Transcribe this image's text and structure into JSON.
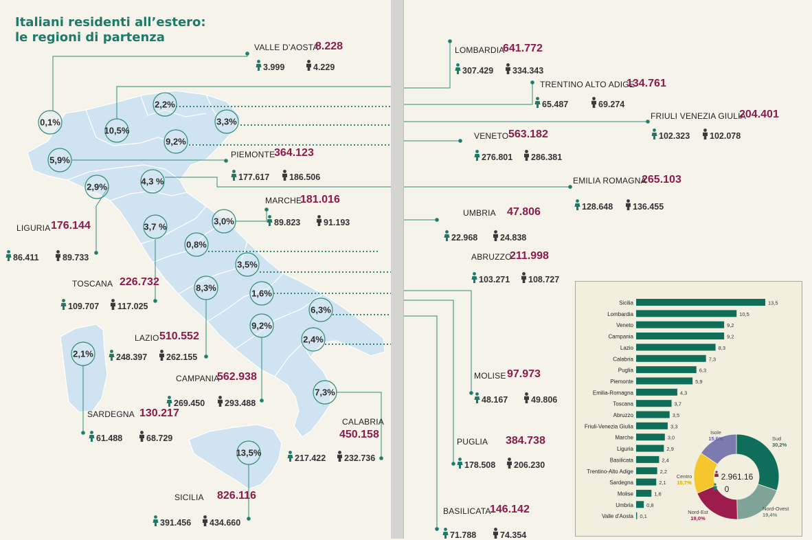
{
  "title_lines": [
    "Italiani residenti all’estero:",
    "le regioni di partenza"
  ],
  "colors": {
    "accent": "#1d7a68",
    "total": "#8c1a4a",
    "map": "#cfe3f0",
    "bar": "#0f6e5a",
    "sud": "#0f6e5a",
    "nord_ovest": "#7fa396",
    "nord_est": "#9c1c4c",
    "centro": "#f6c72d",
    "isole": "#7c7bb0"
  },
  "icons": {
    "female": "female-icon",
    "male": "male-icon"
  },
  "regions": [
    {
      "name": "VALLE D’AOSTA",
      "total": "8.228",
      "female": "3.999",
      "male": "4.229",
      "pct": "0,1%"
    },
    {
      "name": "LOMBARDIA",
      "total": "641.772",
      "female": "307.429",
      "male": "334.343",
      "pct": "10,5%"
    },
    {
      "name": "TRENTINO ALTO ADIGE",
      "total": "134.761",
      "female": "65.487",
      "male": "69.274",
      "pct": "2,2%"
    },
    {
      "name": "FRIULI VENEZIA GIULIA",
      "total": "204.401",
      "female": "102.323",
      "male": "102.078",
      "pct": "3,3%"
    },
    {
      "name": "VENETO",
      "total": "563.182",
      "female": "276.801",
      "male": "286.381",
      "pct": "9,2%"
    },
    {
      "name": "PIEMONTE",
      "total": "364.123",
      "female": "177.617",
      "male": "186.506",
      "pct": "5,9%"
    },
    {
      "name": "EMILIA ROMAGNA",
      "total": "265.103",
      "female": "128.648",
      "male": "136.455",
      "pct": "4,3 %"
    },
    {
      "name": "LIGURIA",
      "total": "176.144",
      "female": "86.411",
      "male": "89.733",
      "pct": "2,9%"
    },
    {
      "name": "MARCHE",
      "total": "181.016",
      "female": "89.823",
      "male": "91.193",
      "pct": "3,0%"
    },
    {
      "name": "UMBRIA",
      "total": "47.806",
      "female": "22.968",
      "male": "24.838",
      "pct": "0,8%"
    },
    {
      "name": "TOSCANA",
      "total": "226.732",
      "female": "109.707",
      "male": "117.025",
      "pct": "3,7 %"
    },
    {
      "name": "ABRUZZO",
      "total": "211.998",
      "female": "103.271",
      "male": "108.727",
      "pct": "3,5%"
    },
    {
      "name": "LAZIO",
      "total": "510.552",
      "female": "248.397",
      "male": "262.155",
      "pct": "8,3%"
    },
    {
      "name": "MOLISE",
      "total": "97.973",
      "female": "48.167",
      "male": "49.806",
      "pct": "1,6%"
    },
    {
      "name": "SARDEGNA",
      "total": "130.217",
      "female": "61.488",
      "male": "68.729",
      "pct": "2,1%"
    },
    {
      "name": "CAMPANIA",
      "total": "562.938",
      "female": "269.450",
      "male": "293.488",
      "pct": "9,2%"
    },
    {
      "name": "PUGLIA",
      "total": "384.738",
      "female": "178.508",
      "male": "206.230",
      "pct": "6,3%"
    },
    {
      "name": "BASILICATA",
      "total": "146.142",
      "female": "71.788",
      "male": "74.354",
      "pct": "2,4%"
    },
    {
      "name": "CALABRIA",
      "total": "450.158",
      "female": "217.422",
      "male": "232.736",
      "pct": "7,3%"
    },
    {
      "name": "SICILIA",
      "total": "826.116",
      "female": "391.456",
      "male": "434.660",
      "pct": "13,5%"
    }
  ],
  "chart_data": [
    {
      "type": "bar",
      "orientation": "horizontal",
      "categories": [
        "Sicilia",
        "Lombardia",
        "Veneto",
        "Campania",
        "Lazio",
        "Calabria",
        "Puglia",
        "Piemonte",
        "Emilia-Romagna",
        "Toscana",
        "Abruzzo",
        "Friuli-Venezia Giulia",
        "Marche",
        "Liguria",
        "Basilicata",
        "Trentino-Alto Adige",
        "Sardegna",
        "Molise",
        "Umbria",
        "Valle d'Aosta"
      ],
      "values": [
        13.5,
        10.5,
        9.2,
        9.2,
        8.3,
        7.3,
        6.3,
        5.9,
        4.3,
        3.7,
        3.5,
        3.3,
        3.0,
        2.9,
        2.4,
        2.2,
        2.1,
        1.6,
        0.8,
        0.1
      ],
      "value_labels": [
        "13,5",
        "10,5",
        "9,2",
        "9,2",
        "8,3",
        "7,3",
        "6,3",
        "5,9",
        "4,3",
        "3,7",
        "3,5",
        "3,3",
        "3,0",
        "2,9",
        "2,4",
        "2,2",
        "2,1",
        "1,6",
        "0,8",
        "0,1"
      ],
      "xlim": [
        0,
        13.5
      ]
    },
    {
      "type": "pie",
      "style": "donut",
      "center_value": "2.961.16",
      "center_value2": "0",
      "slices": [
        {
          "name": "Sud",
          "value": 30.2,
          "label": "30,2%"
        },
        {
          "name": "Nord-Ovest",
          "value": 19.4,
          "label": "19,4%"
        },
        {
          "name": "Nord-Est",
          "value": 19.0,
          "label": "19,0%"
        },
        {
          "name": "Centro",
          "value": 15.7,
          "label": "15,7%"
        },
        {
          "name": "Isole",
          "value": 15.6,
          "label": "15,6%"
        }
      ]
    }
  ]
}
